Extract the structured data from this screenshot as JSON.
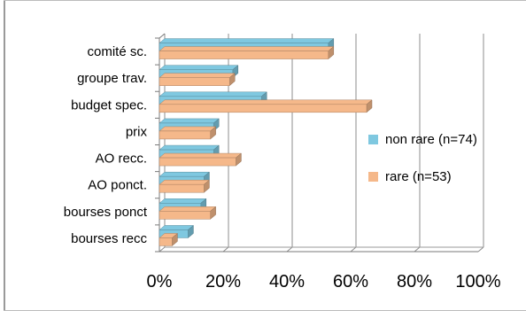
{
  "chart_data": {
    "type": "bar",
    "orientation": "horizontal",
    "categories": [
      "comité sc.",
      "groupe trav.",
      "budget spec.",
      "prix",
      "AO recc.",
      "AO ponct.",
      "bourses ponct",
      "bourses recc"
    ],
    "series": [
      {
        "name": "non rare (n=74)",
        "values": [
          53,
          23,
          32,
          17,
          17,
          14,
          13,
          9
        ],
        "color": "#7fc8e0"
      },
      {
        "name": "rare (n=53)",
        "values": [
          53,
          22,
          65,
          16,
          24,
          14,
          16,
          4
        ],
        "color": "#f5b88a"
      }
    ],
    "xlim": [
      0,
      100
    ],
    "xticks": [
      "0%",
      "20%",
      "40%",
      "60%",
      "80%",
      "100%"
    ],
    "x_tick_values": [
      0,
      20,
      40,
      60,
      80,
      100
    ],
    "title": "",
    "xlabel": "",
    "ylabel": "",
    "grid": true,
    "legend_position": "right"
  }
}
